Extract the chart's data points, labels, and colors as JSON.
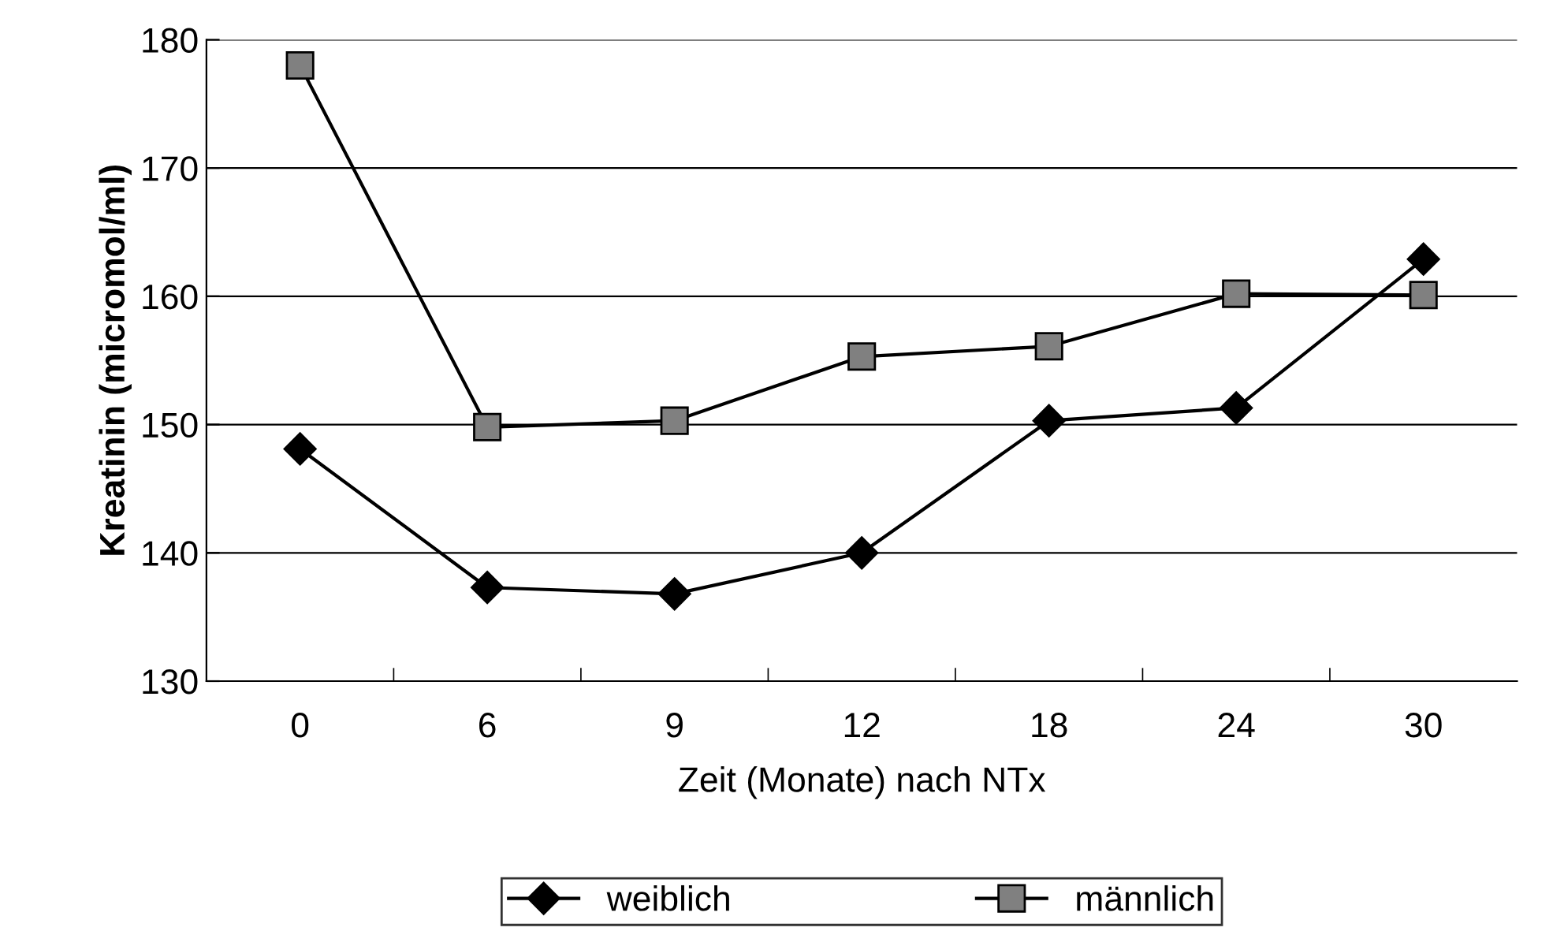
{
  "chart_data": {
    "type": "line",
    "xlabel": "Zeit (Monate) nach NTx",
    "ylabel": "Kreatinin (micromol/ml)",
    "categories": [
      "0",
      "6",
      "9",
      "12",
      "18",
      "24",
      "30"
    ],
    "series": [
      {
        "name": "weiblich",
        "color": "#000000",
        "marker": "diamond",
        "values": [
          148.1,
          137.3,
          136.8,
          140.0,
          150.3,
          151.3,
          162.9
        ]
      },
      {
        "name": "männlich",
        "color": "#808080",
        "marker": "square",
        "values": [
          178.0,
          149.8,
          150.3,
          155.3,
          156.1,
          160.2,
          160.1
        ]
      }
    ],
    "ylim": [
      130,
      180
    ],
    "yticks": [
      130,
      140,
      150,
      160,
      170,
      180
    ],
    "grid": "y",
    "legend": "bottom",
    "line_style": "solid"
  }
}
